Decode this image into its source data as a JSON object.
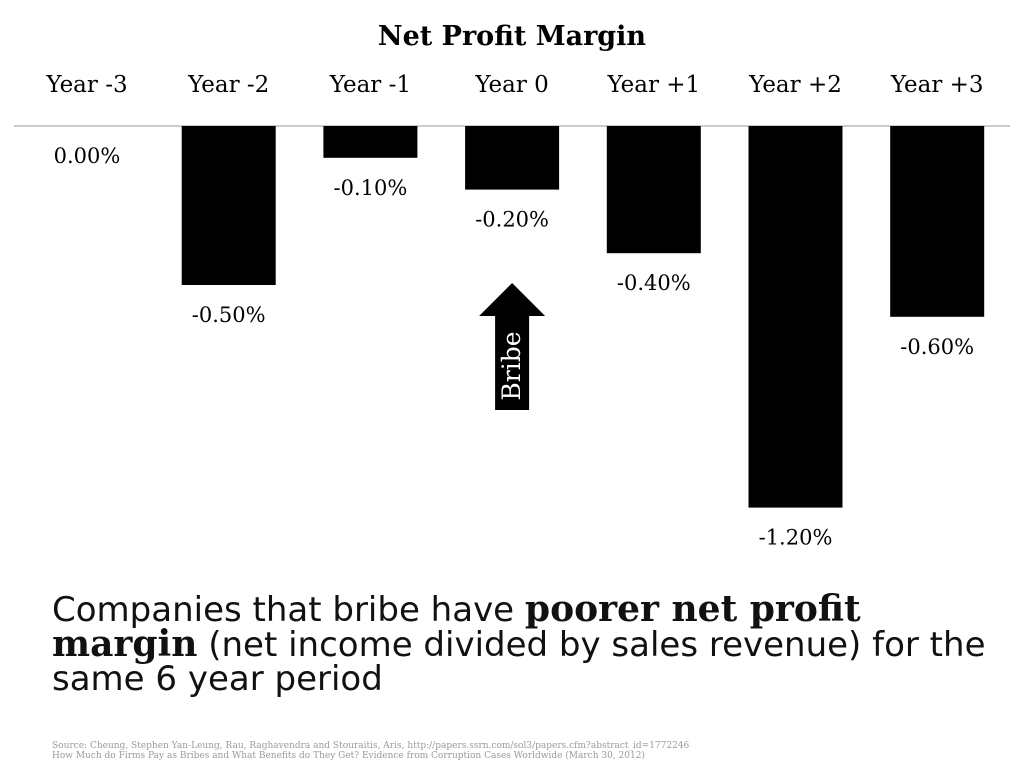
{
  "chart_data": {
    "type": "bar",
    "title": "Net Profit Margin",
    "categories": [
      "Year -3",
      "Year -2",
      "Year -1",
      "Year 0",
      "Year +1",
      "Year +2",
      "Year +3"
    ],
    "values": [
      0.0,
      -0.5,
      -0.1,
      -0.2,
      -0.4,
      -1.2,
      -0.6
    ],
    "data_labels": [
      "0.00%",
      "-0.50%",
      "-0.10%",
      "-0.20%",
      "-0.40%",
      "-1.20%",
      "-0.60%"
    ],
    "bar_color": "#000000",
    "annotation": {
      "text": "Bribe",
      "category": "Year 0",
      "shape": "upward-arrow"
    },
    "xlabel": "",
    "ylabel": "",
    "ylim": [
      -1.2,
      0
    ],
    "grid": false,
    "category_axis_position": "top"
  },
  "caption": {
    "part1": "Companies that bribe have ",
    "bold": "poorer net profit margin",
    "part2": " (net income divided by sales revenue) for the same 6 year period"
  },
  "source": {
    "line1": "Source: Cheung, Stephen Yan-Leung, Rau, Raghavendra and Stouraitis, Aris, http://papers.ssrn.com/sol3/papers.cfm?abstract_id=1772246",
    "line2": "How Much do Firms Pay as Bribes and What Benefits do They Get? Evidence from Corruption Cases Worldwide (March 30, 2012)"
  }
}
